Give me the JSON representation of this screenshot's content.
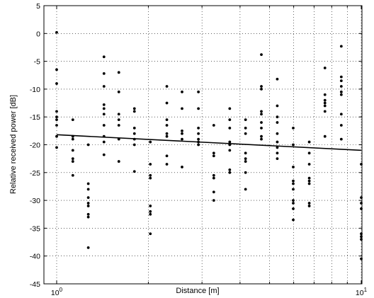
{
  "chart_data": {
    "type": "scatter",
    "title": "",
    "xlabel": "Distance [m]",
    "ylabel": "Relative received power [dB]",
    "xscale": "log",
    "xlim": [
      1,
      10
    ],
    "ylim": [
      -45,
      5
    ],
    "grid": true,
    "y_ticks": [
      5,
      0,
      -5,
      -10,
      -15,
      -20,
      -25,
      -30,
      -35,
      -40,
      -45
    ],
    "x_ticks": [
      {
        "value": 1,
        "base": "10",
        "exp": "0"
      },
      {
        "value": 10,
        "base": "10",
        "exp": "1"
      }
    ],
    "x_minor_grid": [
      2,
      3,
      4,
      5,
      6,
      7,
      8,
      9
    ],
    "points": [
      [
        1.0,
        0.2
      ],
      [
        1.0,
        -6.5
      ],
      [
        1.0,
        -9.0
      ],
      [
        1.0,
        -14.0
      ],
      [
        1.0,
        -15.0
      ],
      [
        1.0,
        -15.5
      ],
      [
        1.0,
        -16.5
      ],
      [
        1.0,
        -18.5
      ],
      [
        1.0,
        -20.5
      ],
      [
        1.13,
        -15.5
      ],
      [
        1.13,
        -18.5
      ],
      [
        1.13,
        -19.0
      ],
      [
        1.13,
        -21.0
      ],
      [
        1.13,
        -22.5
      ],
      [
        1.13,
        -23.0
      ],
      [
        1.13,
        -25.5
      ],
      [
        1.27,
        -20.0
      ],
      [
        1.27,
        -27.0
      ],
      [
        1.27,
        -28.0
      ],
      [
        1.27,
        -29.5
      ],
      [
        1.27,
        -30.5
      ],
      [
        1.27,
        -31.0
      ],
      [
        1.27,
        -32.5
      ],
      [
        1.27,
        -33.0
      ],
      [
        1.27,
        -38.5
      ],
      [
        1.43,
        -4.2
      ],
      [
        1.43,
        -7.2
      ],
      [
        1.43,
        -9.5
      ],
      [
        1.43,
        -12.8
      ],
      [
        1.43,
        -13.5
      ],
      [
        1.43,
        -14.5
      ],
      [
        1.43,
        -16.5
      ],
      [
        1.43,
        -18.5
      ],
      [
        1.43,
        -19.5
      ],
      [
        1.43,
        -21.8
      ],
      [
        1.6,
        -7.0
      ],
      [
        1.6,
        -10.5
      ],
      [
        1.6,
        -14.5
      ],
      [
        1.6,
        -15.5
      ],
      [
        1.6,
        -16.5
      ],
      [
        1.6,
        -19.0
      ],
      [
        1.6,
        -23.0
      ],
      [
        1.8,
        -13.5
      ],
      [
        1.8,
        -14.0
      ],
      [
        1.8,
        -17.0
      ],
      [
        1.8,
        -18.0
      ],
      [
        1.8,
        -19.0
      ],
      [
        1.8,
        -20.0
      ],
      [
        1.8,
        -24.8
      ],
      [
        2.03,
        -19.5
      ],
      [
        2.03,
        -23.5
      ],
      [
        2.03,
        -25.5
      ],
      [
        2.03,
        -26.0
      ],
      [
        2.03,
        -31.0
      ],
      [
        2.03,
        -32.0
      ],
      [
        2.03,
        -32.5
      ],
      [
        2.03,
        -36.0
      ],
      [
        2.3,
        -9.5
      ],
      [
        2.3,
        -12.5
      ],
      [
        2.3,
        -15.5
      ],
      [
        2.3,
        -16.5
      ],
      [
        2.3,
        -18.0
      ],
      [
        2.3,
        -18.5
      ],
      [
        2.3,
        -22.0
      ],
      [
        2.3,
        -23.5
      ],
      [
        2.58,
        -10.5
      ],
      [
        2.58,
        -13.5
      ],
      [
        2.58,
        -17.5
      ],
      [
        2.58,
        -18.0
      ],
      [
        2.58,
        -19.0
      ],
      [
        2.58,
        -24.0
      ],
      [
        2.92,
        -10.5
      ],
      [
        2.92,
        -13.5
      ],
      [
        2.92,
        -17.0
      ],
      [
        2.92,
        -18.0
      ],
      [
        2.92,
        -19.0
      ],
      [
        2.92,
        -19.5
      ],
      [
        2.92,
        -20.0
      ],
      [
        3.28,
        -16.5
      ],
      [
        3.28,
        -21.5
      ],
      [
        3.28,
        -22.0
      ],
      [
        3.28,
        -25.5
      ],
      [
        3.28,
        -26.0
      ],
      [
        3.28,
        -28.5
      ],
      [
        3.28,
        -30.0
      ],
      [
        3.7,
        -13.5
      ],
      [
        3.7,
        -15.5
      ],
      [
        3.7,
        -17.0
      ],
      [
        3.7,
        -19.5
      ],
      [
        3.7,
        -20.0
      ],
      [
        3.7,
        -21.0
      ],
      [
        3.7,
        -24.5
      ],
      [
        3.7,
        -25.0
      ],
      [
        4.17,
        -15.5
      ],
      [
        4.17,
        -17.0
      ],
      [
        4.17,
        -18.0
      ],
      [
        4.17,
        -21.5
      ],
      [
        4.17,
        -22.5
      ],
      [
        4.17,
        -23.0
      ],
      [
        4.17,
        -25.0
      ],
      [
        4.17,
        -28.0
      ],
      [
        4.7,
        -3.8
      ],
      [
        4.7,
        -9.5
      ],
      [
        4.7,
        -10.0
      ],
      [
        4.7,
        -14.0
      ],
      [
        4.7,
        -14.5
      ],
      [
        4.7,
        -16.0
      ],
      [
        4.7,
        -17.0
      ],
      [
        4.7,
        -18.5
      ],
      [
        4.7,
        -19.0
      ],
      [
        5.3,
        -8.2
      ],
      [
        5.3,
        -13.0
      ],
      [
        5.3,
        -15.0
      ],
      [
        5.3,
        -16.0
      ],
      [
        5.3,
        -18.0
      ],
      [
        5.3,
        -19.5
      ],
      [
        5.3,
        -20.5
      ],
      [
        5.3,
        -21.5
      ],
      [
        5.3,
        -22.5
      ],
      [
        5.98,
        -17.0
      ],
      [
        5.98,
        -20.0
      ],
      [
        5.98,
        -24.0
      ],
      [
        5.98,
        -26.5
      ],
      [
        5.98,
        -27.0
      ],
      [
        5.98,
        -28.0
      ],
      [
        5.98,
        -30.0
      ],
      [
        5.98,
        -30.5
      ],
      [
        5.98,
        -31.5
      ],
      [
        5.98,
        -33.5
      ],
      [
        6.75,
        -19.5
      ],
      [
        6.75,
        -21.5
      ],
      [
        6.75,
        -23.5
      ],
      [
        6.75,
        -26.0
      ],
      [
        6.75,
        -26.5
      ],
      [
        6.75,
        -27.0
      ],
      [
        6.75,
        -30.5
      ],
      [
        6.75,
        -31.0
      ],
      [
        7.6,
        -6.2
      ],
      [
        7.6,
        -11.0
      ],
      [
        7.6,
        -12.0
      ],
      [
        7.6,
        -12.5
      ],
      [
        7.6,
        -13.0
      ],
      [
        7.6,
        -14.0
      ],
      [
        7.6,
        -18.5
      ],
      [
        8.6,
        -2.3
      ],
      [
        8.6,
        -7.8
      ],
      [
        8.6,
        -8.5
      ],
      [
        8.6,
        -9.5
      ],
      [
        8.6,
        -10.5
      ],
      [
        8.6,
        -11.0
      ],
      [
        8.6,
        -14.5
      ],
      [
        8.6,
        -16.5
      ],
      [
        8.6,
        -19.0
      ],
      [
        10.0,
        -23.5
      ],
      [
        10.0,
        -29.5
      ],
      [
        10.0,
        -30.5
      ],
      [
        10.0,
        -31.5
      ],
      [
        10.0,
        -36.0
      ],
      [
        10.0,
        -36.5
      ],
      [
        10.0,
        -37.0
      ],
      [
        10.0,
        -40.5
      ]
    ],
    "trend_line": {
      "x": [
        1,
        10
      ],
      "y": [
        -18.2,
        -21.0
      ]
    }
  }
}
